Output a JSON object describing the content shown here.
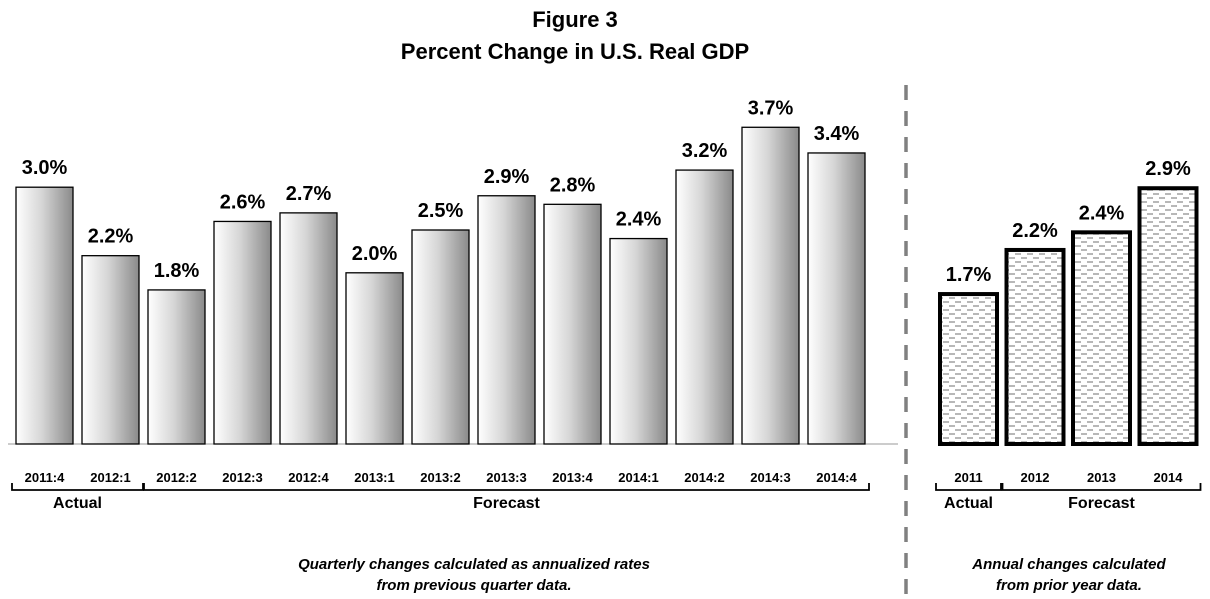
{
  "title": "Figure 3",
  "subtitle": "Percent Change in U.S. Real GDP",
  "chart_data": [
    {
      "type": "bar",
      "categories": [
        "2011:4",
        "2012:1",
        "2012:2",
        "2012:3",
        "2012:4",
        "2013:1",
        "2013:2",
        "2013:3",
        "2013:4",
        "2014:1",
        "2014:2",
        "2014:3",
        "2014:4"
      ],
      "values": [
        3.0,
        2.2,
        1.8,
        2.6,
        2.7,
        2.0,
        2.5,
        2.9,
        2.8,
        2.4,
        3.2,
        3.7,
        3.4
      ],
      "data_labels": [
        "3.0%",
        "2.2%",
        "1.8%",
        "2.6%",
        "2.7%",
        "2.0%",
        "2.5%",
        "2.9%",
        "2.8%",
        "2.4%",
        "3.2%",
        "3.7%",
        "3.4%"
      ],
      "ylim": [
        0,
        4
      ],
      "groups": [
        {
          "label": "Actual",
          "categories": [
            "2011:4",
            "2012:1"
          ]
        },
        {
          "label": "Forecast",
          "categories": [
            "2012:2",
            "2012:3",
            "2012:4",
            "2013:1",
            "2013:2",
            "2013:3",
            "2013:4",
            "2014:1",
            "2014:2",
            "2014:3",
            "2014:4"
          ]
        }
      ],
      "note": [
        "Quarterly changes calculated as annualized rates",
        "from previous quarter data."
      ],
      "bar_fill": "gradient-gray",
      "grid": false
    },
    {
      "type": "bar",
      "categories": [
        "2011",
        "2012",
        "2013",
        "2014"
      ],
      "values": [
        1.7,
        2.2,
        2.4,
        2.9
      ],
      "data_labels": [
        "1.7%",
        "2.2%",
        "2.4%",
        "2.9%"
      ],
      "ylim": [
        0,
        4
      ],
      "groups": [
        {
          "label": "Actual",
          "categories": [
            "2011"
          ]
        },
        {
          "label": "Forecast",
          "categories": [
            "2012",
            "2013",
            "2014"
          ]
        }
      ],
      "note": [
        "Annual changes calculated",
        "from prior year data."
      ],
      "bar_fill": "dashed-pattern",
      "grid": false
    }
  ],
  "colors": {
    "bar_edge": "#000000",
    "gradient_light": "#ffffff",
    "gradient_dark": "#8a8a8a",
    "divider": "#808080",
    "pattern_dash": "#888888",
    "axis": "#999999"
  }
}
